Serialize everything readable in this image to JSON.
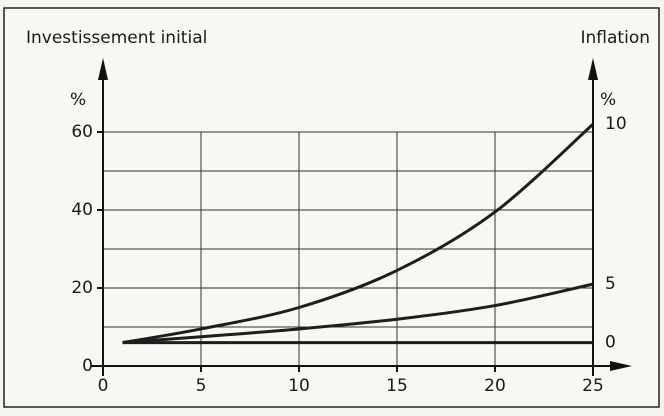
{
  "chart_data": {
    "type": "line",
    "y_axis_title": "Investissement initial",
    "y_axis_unit": "%",
    "y2_axis_title": "Inflation",
    "y2_axis_unit": "%",
    "x": [
      1,
      5,
      10,
      15,
      20,
      25
    ],
    "xlim": [
      0,
      25
    ],
    "xticks": [
      0,
      5,
      10,
      15,
      20,
      25
    ],
    "ylim": [
      0,
      60
    ],
    "yticks": [
      0,
      20,
      40,
      60
    ],
    "ygrid_lines": [
      10,
      20,
      30,
      40,
      50,
      60
    ],
    "xgrid_lines": [
      5,
      10,
      15,
      20,
      25
    ],
    "grid": true,
    "series": [
      {
        "name": "10",
        "color": "#1e1e1e",
        "values": [
          6,
          9.5,
          15,
          24.5,
          39.5,
          62
        ]
      },
      {
        "name": "5",
        "color": "#1e1e1e",
        "values": [
          6,
          7.5,
          9.5,
          12,
          15.5,
          21
        ]
      },
      {
        "name": "0",
        "color": "#1e1e1e",
        "values": [
          6,
          6,
          6,
          6,
          6,
          6
        ]
      }
    ]
  }
}
